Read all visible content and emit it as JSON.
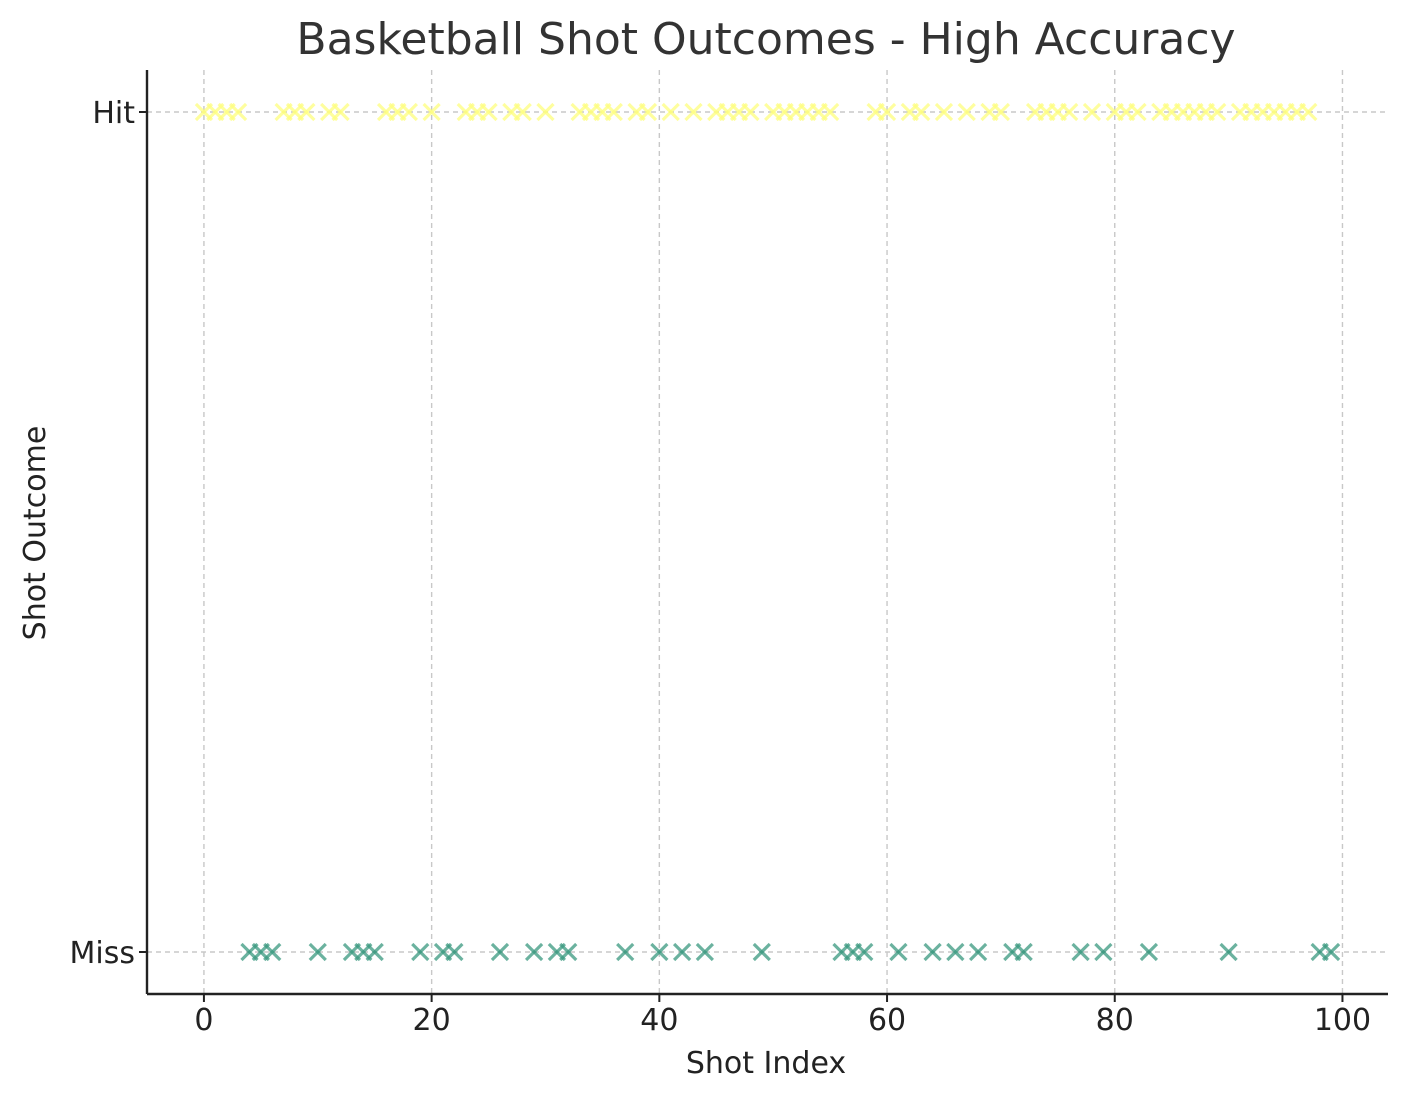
{
  "chart_data": {
    "type": "scatter",
    "title": "Basketball Shot Outcomes - High Accuracy",
    "xlabel": "Shot Index",
    "ylabel": "Shot Outcome",
    "xlim": [
      -5,
      104
    ],
    "ylim": [
      -0.05,
      1.05
    ],
    "xticks": [
      0,
      20,
      40,
      60,
      80,
      100
    ],
    "yticks": [
      {
        "value": 0,
        "label": "Miss"
      },
      {
        "value": 1,
        "label": "Hit"
      }
    ],
    "grid": true,
    "marker": "x",
    "colors": {
      "hit": "#fdfd7e",
      "miss": "#3a987f"
    },
    "series": [
      {
        "outcome": 1,
        "x": [
          0,
          1,
          2,
          3,
          7,
          8,
          9,
          11,
          12,
          16,
          17,
          18,
          20,
          23,
          24,
          25,
          27,
          28,
          30,
          33,
          34,
          35,
          36,
          38,
          39,
          41,
          43,
          45,
          46,
          47,
          48,
          50,
          51,
          52,
          53,
          54,
          55,
          59,
          60,
          62,
          63,
          65,
          67,
          69,
          70,
          73,
          74,
          75,
          76,
          78,
          80,
          81,
          82,
          84,
          85,
          86,
          87,
          88,
          89,
          91,
          92,
          93,
          94,
          95,
          96,
          97
        ]
      },
      {
        "outcome": 0,
        "x": [
          4,
          5,
          6,
          10,
          13,
          14,
          15,
          19,
          21,
          22,
          26,
          29,
          31,
          32,
          37,
          40,
          42,
          44,
          49,
          56,
          57,
          58,
          61,
          64,
          66,
          68,
          71,
          72,
          77,
          79,
          83,
          90,
          98,
          99
        ]
      }
    ]
  }
}
